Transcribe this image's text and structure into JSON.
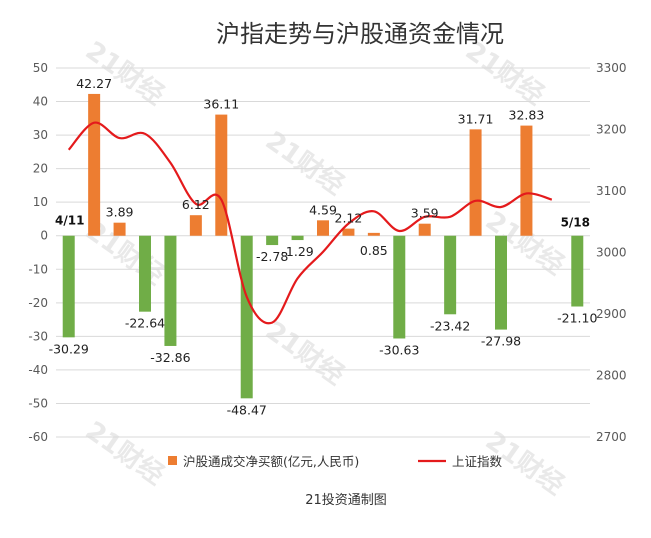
{
  "title": "沪指走势与沪股通资金情况",
  "source": "21投资通制图",
  "watermark": "21财经",
  "chart_data": {
    "type": "bar",
    "title": "沪指走势与沪股通资金情况",
    "n_points": 21,
    "left_axis": {
      "ylim": [
        -60,
        50
      ],
      "ticks": [
        50,
        40,
        30,
        20,
        10,
        0,
        -10,
        -20,
        -30,
        -40,
        -50,
        -60
      ]
    },
    "right_axis": {
      "ylim": [
        2700,
        3300
      ],
      "ticks": [
        3300,
        3200,
        3100,
        3000,
        2900,
        2800,
        2700
      ]
    },
    "categories_shown": {
      "first": "4/11",
      "last": "5/18"
    },
    "grid": true,
    "legend_position": "bottom",
    "series": [
      {
        "name": "沪股通成交净买额(亿元,人民币)",
        "type": "bar",
        "axis": "left",
        "positive_color": "#ed7d31",
        "negative_color": "#70ad47",
        "values": [
          -30.29,
          42.27,
          3.89,
          -22.64,
          -32.86,
          6.12,
          36.11,
          -48.47,
          -2.78,
          -1.29,
          4.59,
          2.12,
          0.85,
          -30.63,
          3.59,
          -23.42,
          31.71,
          -27.98,
          32.83,
          -21.1
        ],
        "labels": [
          "-30.29",
          "42.27",
          "3.89",
          "-22.64",
          "-32.86",
          "6.12",
          "36.11",
          "-48.47",
          "-2.78",
          "-1.29",
          "4.59",
          "2.12",
          "0.85",
          "-30.63",
          "3.59",
          "-23.42",
          "31.71",
          "-27.98",
          "32.83",
          "-21.10"
        ],
        "slots": [
          0,
          1,
          2,
          3,
          4,
          5,
          6,
          7,
          8,
          9,
          10,
          11,
          12,
          13,
          14,
          15,
          16,
          17,
          18,
          20
        ]
      },
      {
        "name": "上证指数",
        "type": "line",
        "axis": "right",
        "color": "#e41a1c",
        "values": [
          3167,
          3211,
          3186,
          3193,
          3146,
          3079,
          3086,
          2928,
          2886,
          2958,
          3001,
          3047,
          3067,
          3035,
          3058,
          3058,
          3084,
          3074,
          3096,
          3086
        ]
      }
    ]
  }
}
